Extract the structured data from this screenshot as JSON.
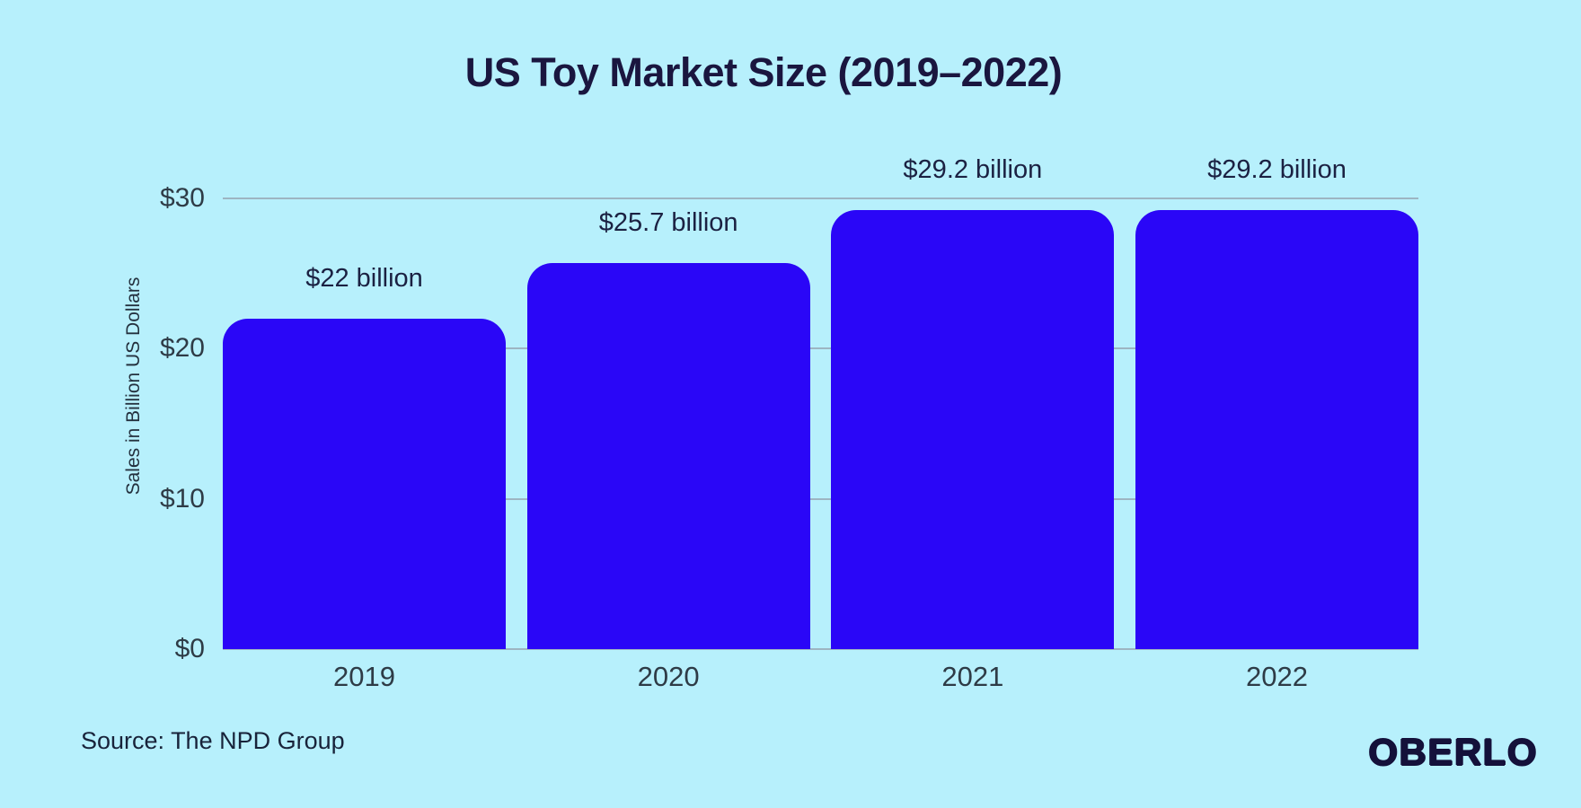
{
  "title": "US Toy Market Size (2019–2022)",
  "footer": {
    "source": "Source: The NPD Group",
    "logo": "OBERLO"
  },
  "colors": {
    "background": "#b7f0fc",
    "bar": "#2a06f7",
    "title_text": "#1a163f",
    "axis_text": "#2e3b46",
    "value_label_text": "#1b2142",
    "gridline": "#9db5c2",
    "logo_text": "#14113a"
  },
  "chart_data": {
    "type": "bar",
    "title": "US Toy Market Size (2019–2022)",
    "categories": [
      "2019",
      "2020",
      "2021",
      "2022"
    ],
    "values": [
      22,
      25.7,
      29.2,
      29.2
    ],
    "bar_labels": [
      "$22 billion",
      "$25.7 billion",
      "$29.2 billion",
      "$29.2 billion"
    ],
    "xlabel": "",
    "ylabel": "Sales in Billion US Dollars",
    "ylim": [
      0,
      30
    ],
    "yticks": [
      0,
      10,
      20,
      30
    ],
    "ytick_labels": [
      "$0",
      "$10",
      "$20",
      "$30"
    ],
    "grid": true,
    "legend": false,
    "bar_color": "#2a06f7",
    "background": "#b7f0fc"
  }
}
